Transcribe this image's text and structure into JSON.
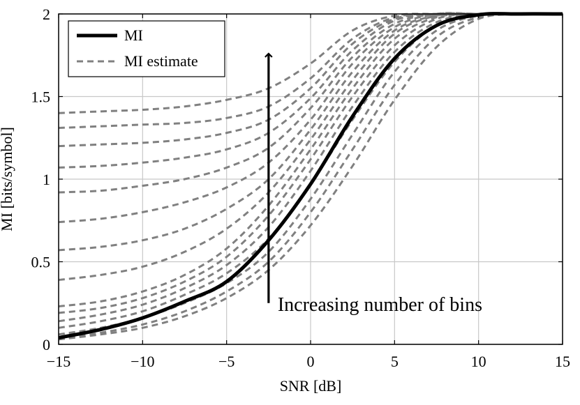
{
  "chart_data": {
    "type": "line",
    "xlabel": "SNR [dB]",
    "ylabel": "MI [bits/symbol]",
    "xlim": [
      -15,
      15
    ],
    "ylim": [
      0,
      2
    ],
    "xticks": [
      -15,
      -10,
      -5,
      0,
      5,
      10,
      15
    ],
    "yticks": [
      0,
      0.5,
      1,
      1.5,
      2
    ],
    "xtick_labels": [
      "−15",
      "−10",
      "−5",
      "0",
      "5",
      "10",
      "15"
    ],
    "ytick_labels": [
      "0",
      "0.5",
      "1",
      "1.5",
      "2"
    ],
    "grid": true,
    "legend": {
      "position": "top-left",
      "entries": [
        {
          "label": "MI",
          "style": "solid",
          "color": "#000000"
        },
        {
          "label": "MI estimate",
          "style": "dashed",
          "color": "#808080"
        }
      ]
    },
    "annotation": {
      "text": "Increasing number of bins",
      "arrow_x": -2.5,
      "arrow_from_y": 0.25,
      "arrow_to_y": 1.76
    },
    "x": [
      -15,
      -12.5,
      -10,
      -7.5,
      -5,
      -2.5,
      0,
      2.5,
      5,
      7.5,
      10,
      12.5,
      15
    ],
    "series": [
      {
        "name": "MI",
        "style": "solid",
        "color": "#000000",
        "values": [
          0.04,
          0.09,
          0.16,
          0.26,
          0.38,
          0.63,
          0.97,
          1.38,
          1.73,
          1.93,
          1.995,
          2.0,
          2.0
        ]
      },
      {
        "name": "MI estimate",
        "style": "dashed",
        "color": "#808080",
        "values": [
          0.03,
          0.06,
          0.1,
          0.17,
          0.28,
          0.45,
          0.72,
          1.08,
          1.48,
          1.8,
          1.97,
          2.0,
          2.0
        ]
      },
      {
        "name": "MI estimate",
        "style": "dashed",
        "color": "#808080",
        "values": [
          0.03,
          0.07,
          0.12,
          0.2,
          0.32,
          0.5,
          0.8,
          1.18,
          1.57,
          1.86,
          1.98,
          2.0,
          2.0
        ]
      },
      {
        "name": "MI estimate",
        "style": "dashed",
        "color": "#808080",
        "values": [
          0.06,
          0.1,
          0.16,
          0.25,
          0.37,
          0.56,
          0.88,
          1.27,
          1.65,
          1.9,
          1.99,
          2.0,
          2.0
        ]
      },
      {
        "name": "MI estimate",
        "style": "dashed",
        "color": "#808080",
        "values": [
          0.1,
          0.14,
          0.2,
          0.3,
          0.43,
          0.64,
          0.97,
          1.36,
          1.71,
          1.93,
          1.995,
          2.0,
          2.0
        ]
      },
      {
        "name": "MI estimate",
        "style": "dashed",
        "color": "#808080",
        "values": [
          0.14,
          0.18,
          0.24,
          0.34,
          0.48,
          0.71,
          1.05,
          1.44,
          1.77,
          1.95,
          2.0,
          2.0,
          2.0
        ]
      },
      {
        "name": "MI estimate",
        "style": "dashed",
        "color": "#808080",
        "values": [
          0.19,
          0.22,
          0.28,
          0.38,
          0.53,
          0.78,
          1.12,
          1.5,
          1.81,
          1.97,
          2.0,
          2.0,
          2.0
        ]
      },
      {
        "name": "MI estimate",
        "style": "dashed",
        "color": "#808080",
        "values": [
          0.23,
          0.26,
          0.32,
          0.42,
          0.58,
          0.84,
          1.18,
          1.55,
          1.85,
          1.98,
          2.0,
          2.0,
          2.0
        ]
      },
      {
        "name": "MI estimate",
        "style": "dashed",
        "color": "#808080",
        "values": [
          0.39,
          0.42,
          0.47,
          0.56,
          0.7,
          0.92,
          1.24,
          1.6,
          1.88,
          1.99,
          2.0,
          2.0,
          2.0
        ]
      },
      {
        "name": "MI estimate",
        "style": "dashed",
        "color": "#808080",
        "values": [
          0.57,
          0.59,
          0.63,
          0.7,
          0.82,
          1.0,
          1.3,
          1.65,
          1.9,
          1.99,
          2.0,
          2.0,
          2.0
        ]
      },
      {
        "name": "MI estimate",
        "style": "dashed",
        "color": "#808080",
        "values": [
          0.74,
          0.76,
          0.8,
          0.86,
          0.95,
          1.1,
          1.36,
          1.7,
          1.92,
          2.0,
          2.0,
          2.0,
          2.0
        ]
      },
      {
        "name": "MI estimate",
        "style": "dashed",
        "color": "#808080",
        "values": [
          0.92,
          0.93,
          0.96,
          1.0,
          1.07,
          1.19,
          1.43,
          1.74,
          1.94,
          2.0,
          2.0,
          2.0,
          2.0
        ]
      },
      {
        "name": "MI estimate",
        "style": "dashed",
        "color": "#808080",
        "values": [
          1.07,
          1.08,
          1.1,
          1.13,
          1.18,
          1.28,
          1.49,
          1.78,
          1.96,
          2.0,
          2.0,
          2.0,
          2.0
        ]
      },
      {
        "name": "MI estimate",
        "style": "dashed",
        "color": "#808080",
        "values": [
          1.2,
          1.21,
          1.22,
          1.24,
          1.28,
          1.36,
          1.55,
          1.82,
          1.97,
          2.0,
          2.0,
          2.0,
          2.0
        ]
      },
      {
        "name": "MI estimate",
        "style": "dashed",
        "color": "#808080",
        "values": [
          1.31,
          1.32,
          1.33,
          1.34,
          1.37,
          1.44,
          1.61,
          1.85,
          1.98,
          2.0,
          2.0,
          2.0,
          2.0
        ]
      },
      {
        "name": "MI estimate",
        "style": "dashed",
        "color": "#808080",
        "values": [
          1.4,
          1.41,
          1.42,
          1.44,
          1.48,
          1.55,
          1.7,
          1.9,
          1.99,
          2.0,
          2.0,
          2.0,
          2.0
        ]
      }
    ]
  }
}
